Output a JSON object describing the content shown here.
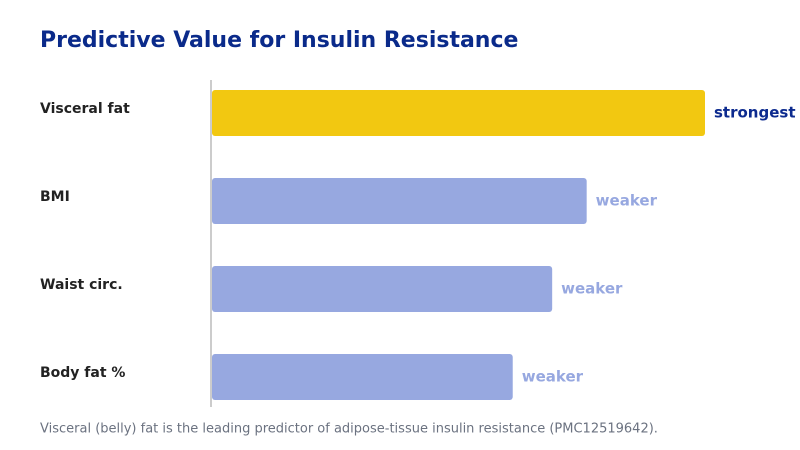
{
  "chart_data": {
    "type": "hbar",
    "title": "Predictive Value for Insulin Resistance",
    "categories": [
      "Visceral fat",
      "BMI",
      "Waist circ.",
      "Body fat %"
    ],
    "values": [
      100,
      76,
      69,
      61
    ],
    "value_labels": [
      "strongest",
      "weaker",
      "weaker",
      "weaker"
    ],
    "colors": [
      "#f2c811",
      "#97a8e0",
      "#97a8e0",
      "#97a8e0"
    ],
    "label_colors": [
      "#0d2b8f",
      "#97a8e0",
      "#97a8e0",
      "#97a8e0"
    ],
    "xlim": [
      0,
      100
    ],
    "note": "Visceral (belly) fat is the leading predictor of adipose-tissue insulin resistance (PMC12519642)."
  }
}
